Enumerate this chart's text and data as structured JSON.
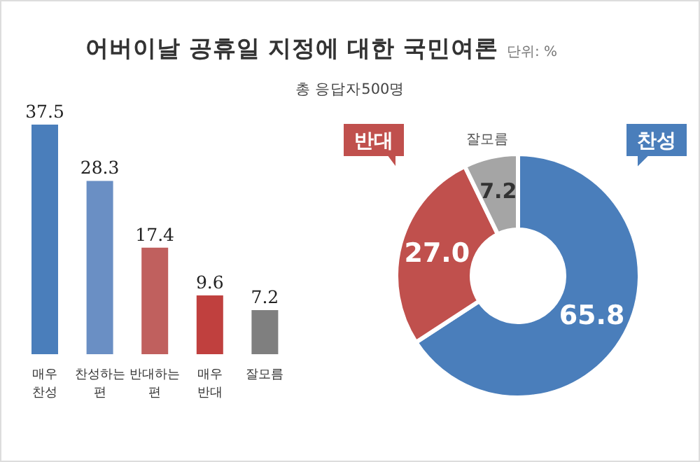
{
  "chart_data": [
    {
      "type": "bar",
      "title": "어버이날 공휴일 지정에 대한 국민여론",
      "subtitle": "총 응답자500명",
      "annotations": [
        "단위: %"
      ],
      "categories": [
        "매우 찬성",
        "찬성하는 편",
        "반대하는 편",
        "매우 반대",
        "잘모름"
      ],
      "values": [
        37.5,
        28.3,
        17.4,
        9.6,
        7.2
      ],
      "colors": [
        "#4a7ebb",
        "#6a8fc4",
        "#c0605e",
        "#c0403e",
        "#7f7f7f"
      ],
      "data_labels": true
    },
    {
      "type": "donut",
      "categories": [
        "찬성",
        "반대",
        "잘모름"
      ],
      "values": [
        65.8,
        27.0,
        7.2
      ],
      "value_labels": [
        "65.8",
        "27.0",
        "7.2"
      ],
      "colors": [
        "#4a7ebb",
        "#c0504d",
        "#a5a5a5"
      ]
    }
  ]
}
